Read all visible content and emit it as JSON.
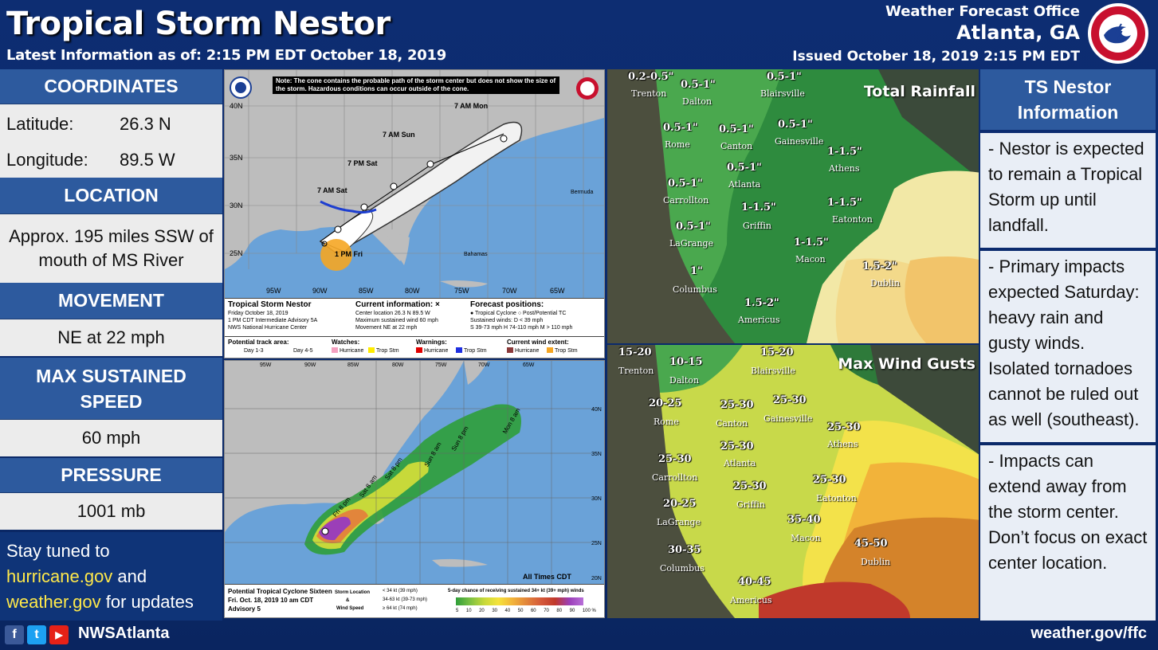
{
  "header": {
    "title": "Tropical Storm Nestor",
    "latest": "Latest Information as of: 2:15 PM EDT October 18, 2019",
    "office_line1": "Weather Forecast Office",
    "office_line2": "Atlanta, GA",
    "issued": "Issued October 18, 2019 2:15 PM EDT"
  },
  "left": {
    "coordinates": {
      "heading": "COORDINATES",
      "lat_label": "Latitude:",
      "lat_value": "26.3 N",
      "lon_label": "Longitude:",
      "lon_value": "89.5 W"
    },
    "location": {
      "heading": "LOCATION",
      "text": "Approx. 195 miles SSW of mouth of MS River"
    },
    "movement": {
      "heading": "MOVEMENT",
      "text": "NE at 22 mph"
    },
    "speed": {
      "heading": "MAX SUSTAINED SPEED",
      "text": "60 mph"
    },
    "pressure": {
      "heading": "PRESSURE",
      "text": "1001 mb"
    },
    "stay": {
      "line1": "Stay tuned to",
      "link1": "hurricane.gov",
      "and": " and",
      "link2": "weather.gov",
      "tail": " for updates"
    }
  },
  "cone_map": {
    "note": "Note: The cone contains the probable path of the storm center but does not show the size of the storm. Hazardous conditions can occur outside of the cone.",
    "labels": [
      "7 AM Mon",
      "7 AM Sun",
      "7 PM Sat",
      "7 AM Sat",
      "1 PM Fri"
    ],
    "lat_ticks": [
      "40N",
      "35N",
      "30N",
      "25N"
    ],
    "lon_ticks": [
      "95W",
      "90W",
      "85W",
      "80W",
      "75W",
      "70W",
      "65W"
    ],
    "bermuda": "Bermuda",
    "bahamas": "Bahamas",
    "storm_title": "Tropical Storm Nestor",
    "storm_date": "Friday October 18, 2019",
    "storm_adv": "1 PM CDT Intermediate Advisory 5A",
    "storm_center": "NWS National Hurricane Center",
    "current_title": "Current information: ×",
    "current_loc": "Center location 26.3 N 89.5 W",
    "current_wind": "Maximum sustained wind 60 mph",
    "current_move": "Movement NE at 22 mph",
    "forecast_title": "Forecast positions:",
    "forecast_l1": "● Tropical Cyclone  ○ Post/Potential TC",
    "forecast_l2": "Sustained winds:    D < 39 mph",
    "forecast_l3": "S 39-73 mph  H 74-110 mph  M > 110 mph",
    "legend": {
      "track": "Potential track area:",
      "day13": "Day 1-3",
      "day45": "Day 4-5",
      "watches": "Watches:",
      "warnings": "Warnings:",
      "wind_extent": "Current wind extent:",
      "hurricane": "Hurricane",
      "trop_stm": "Trop Stm"
    }
  },
  "wind_prob_map": {
    "lon_ticks": [
      "95W",
      "90W",
      "85W",
      "80W",
      "75W",
      "70W",
      "65W"
    ],
    "lat_ticks": [
      "40N",
      "35N",
      "30N",
      "25N",
      "20N"
    ],
    "labels": [
      "Mon 8 am",
      "Sun 8 pm",
      "Sun 8 am",
      "Sat 8 pm",
      "Sat 8 am",
      "Fri 8 pm"
    ],
    "all_times": "All Times CDT",
    "footer_l1": "Potential Tropical Cyclone Sixteen",
    "footer_l2": "Fri. Oct. 18, 2019  10 am CDT",
    "footer_l3": "Advisory 5",
    "storm_loc": "Storm Location",
    "amp": "&",
    "wind_speed": "Wind Speed",
    "k1": "< 34 kt (39 mph)",
    "k2": "34-63 kt (39-73 mph)",
    "k3": "≥ 64 kt (74 mph)",
    "scale_title": "5-day chance of receiving sustained 34+ kt (39+ mph) winds",
    "scale_values": [
      "5",
      "10",
      "20",
      "30",
      "40",
      "50",
      "60",
      "70",
      "80",
      "90",
      "100 %"
    ]
  },
  "rain_map": {
    "title": "Total Rainfall",
    "labels": [
      {
        "t": "0.2-0.5\""
      },
      {
        "t": "0.5-1\""
      },
      {
        "t": "0.5-1\""
      },
      {
        "t": "0.5-1\""
      },
      {
        "t": "0.5-1\""
      },
      {
        "t": "0.5-1\""
      },
      {
        "t": "1-1.5\""
      },
      {
        "t": "0.5-1\""
      },
      {
        "t": "0.5-1\""
      },
      {
        "t": "1-1.5\""
      },
      {
        "t": "1-1.5\""
      },
      {
        "t": "0.5-1\""
      },
      {
        "t": "1-1.5\""
      },
      {
        "t": "1.5-2\""
      },
      {
        "t": "1\""
      },
      {
        "t": "1.5-2\""
      }
    ],
    "cities": [
      "Trenton",
      "Dalton",
      "Blairsville",
      "Rome",
      "Canton",
      "Gainesville",
      "Athens",
      "Carrollton",
      "Atlanta",
      "Griffin",
      "Eatonton",
      "LaGrange",
      "Macon",
      "Dublin",
      "Columbus",
      "Americus"
    ]
  },
  "wind_map": {
    "title": "Max Wind Gusts",
    "labels": [
      {
        "t": "15-20"
      },
      {
        "t": "10-15"
      },
      {
        "t": "15-20"
      },
      {
        "t": "20-25"
      },
      {
        "t": "25-30"
      },
      {
        "t": "25-30"
      },
      {
        "t": "25-30"
      },
      {
        "t": "25-30"
      },
      {
        "t": "25-30"
      },
      {
        "t": "25-30"
      },
      {
        "t": "25-30"
      },
      {
        "t": "20-25"
      },
      {
        "t": "35-40"
      },
      {
        "t": "30-35"
      },
      {
        "t": "45-50"
      },
      {
        "t": "40-45"
      }
    ],
    "cities": [
      "Trenton",
      "Dalton",
      "Blairsville",
      "Rome",
      "Canton",
      "Gainesville",
      "Athens",
      "Carrollton",
      "Atlanta",
      "Griffin",
      "Eatonton",
      "LaGrange",
      "Macon",
      "Dublin",
      "Columbus",
      "Americus"
    ]
  },
  "info": {
    "heading": "TS Nestor Information",
    "items": [
      "- Nestor is expected to remain a Tropical Storm up until landfall.",
      "- Primary impacts expected Saturday: heavy rain and gusty winds. Isolated tornadoes cannot be ruled out as well (southeast).",
      "- Impacts can extend away from the storm center. Don’t focus on exact center location."
    ]
  },
  "footer": {
    "handle": "NWSAtlanta",
    "site": "weather.gov/ffc",
    "icons": [
      "facebook-icon",
      "twitter-icon",
      "youtube-icon"
    ]
  },
  "colors": {
    "brand_navy": "#0b2a6b",
    "section_blue": "#2d5a9e",
    "link_yellow": "#ffe94a"
  }
}
